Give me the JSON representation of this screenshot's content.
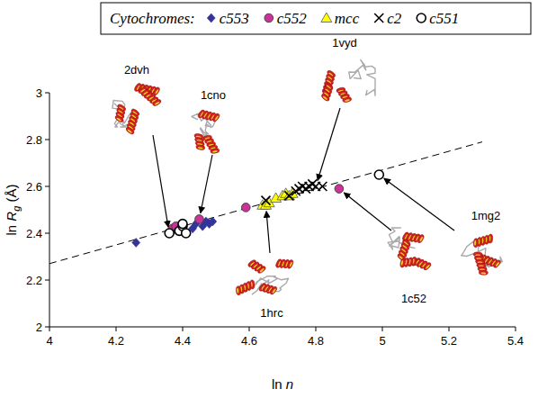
{
  "chart_data": {
    "type": "scatter",
    "legend_title": "Cytochromes:",
    "legend": "top",
    "xlabel": "ln n",
    "ylabel": "ln Rg (Å)",
    "xlim": [
      4,
      5.4
    ],
    "ylim": [
      2,
      3
    ],
    "xticks": [
      4,
      4.2,
      4.4,
      4.6,
      4.8,
      5,
      5.2,
      5.4
    ],
    "yticks": [
      2,
      2.2,
      2.4,
      2.6,
      2.8,
      3
    ],
    "grid": false,
    "series": [
      {
        "name": "c553",
        "color": "#333399",
        "marker": "diamond",
        "x": [
          4.26,
          4.43,
          4.44,
          4.46,
          4.47,
          4.48,
          4.49
        ],
        "values": [
          2.36,
          2.42,
          2.44,
          2.43,
          2.45,
          2.44,
          2.45
        ]
      },
      {
        "name": "c552",
        "color": "#cc3399",
        "marker": "circle",
        "x": [
          4.37,
          4.38,
          4.45,
          4.59,
          4.87
        ],
        "values": [
          2.42,
          2.43,
          2.46,
          2.51,
          2.59
        ]
      },
      {
        "name": "mcc",
        "color": "#ffff00",
        "marker": "triangle",
        "x": [
          4.64,
          4.65,
          4.66,
          4.68,
          4.7,
          4.71,
          4.72,
          4.73
        ],
        "values": [
          2.52,
          2.52,
          2.53,
          2.55,
          2.56,
          2.57,
          2.56,
          2.57
        ]
      },
      {
        "name": "c2",
        "color": "#000000",
        "marker": "x",
        "x": [
          4.65,
          4.72,
          4.74,
          4.75,
          4.76,
          4.77,
          4.78,
          4.79,
          4.8,
          4.82
        ],
        "values": [
          2.54,
          2.56,
          2.58,
          2.59,
          2.6,
          2.59,
          2.6,
          2.61,
          2.6,
          2.6
        ]
      },
      {
        "name": "c551",
        "color": "#000000",
        "marker": "open-circle",
        "x": [
          4.36,
          4.39,
          4.4,
          4.4,
          4.41,
          4.99
        ],
        "values": [
          2.4,
          2.41,
          2.43,
          2.44,
          2.4,
          2.65
        ]
      }
    ],
    "fit_line": {
      "x": [
        4,
        5.3
      ],
      "values": [
        2.27,
        2.79
      ],
      "color": "#000000",
      "line_style": "dashed"
    },
    "annotations": [
      {
        "text": "2dvh",
        "x": 4.36,
        "y": 2.4
      },
      {
        "text": "1cno",
        "x": 4.45,
        "y": 2.46
      },
      {
        "text": "1vyd",
        "x": 4.8,
        "y": 2.6
      },
      {
        "text": "1hrc",
        "x": 4.65,
        "y": 2.52
      },
      {
        "text": "1c52",
        "x": 4.87,
        "y": 2.59
      },
      {
        "text": "1mg2",
        "x": 4.99,
        "y": 2.65
      }
    ]
  }
}
